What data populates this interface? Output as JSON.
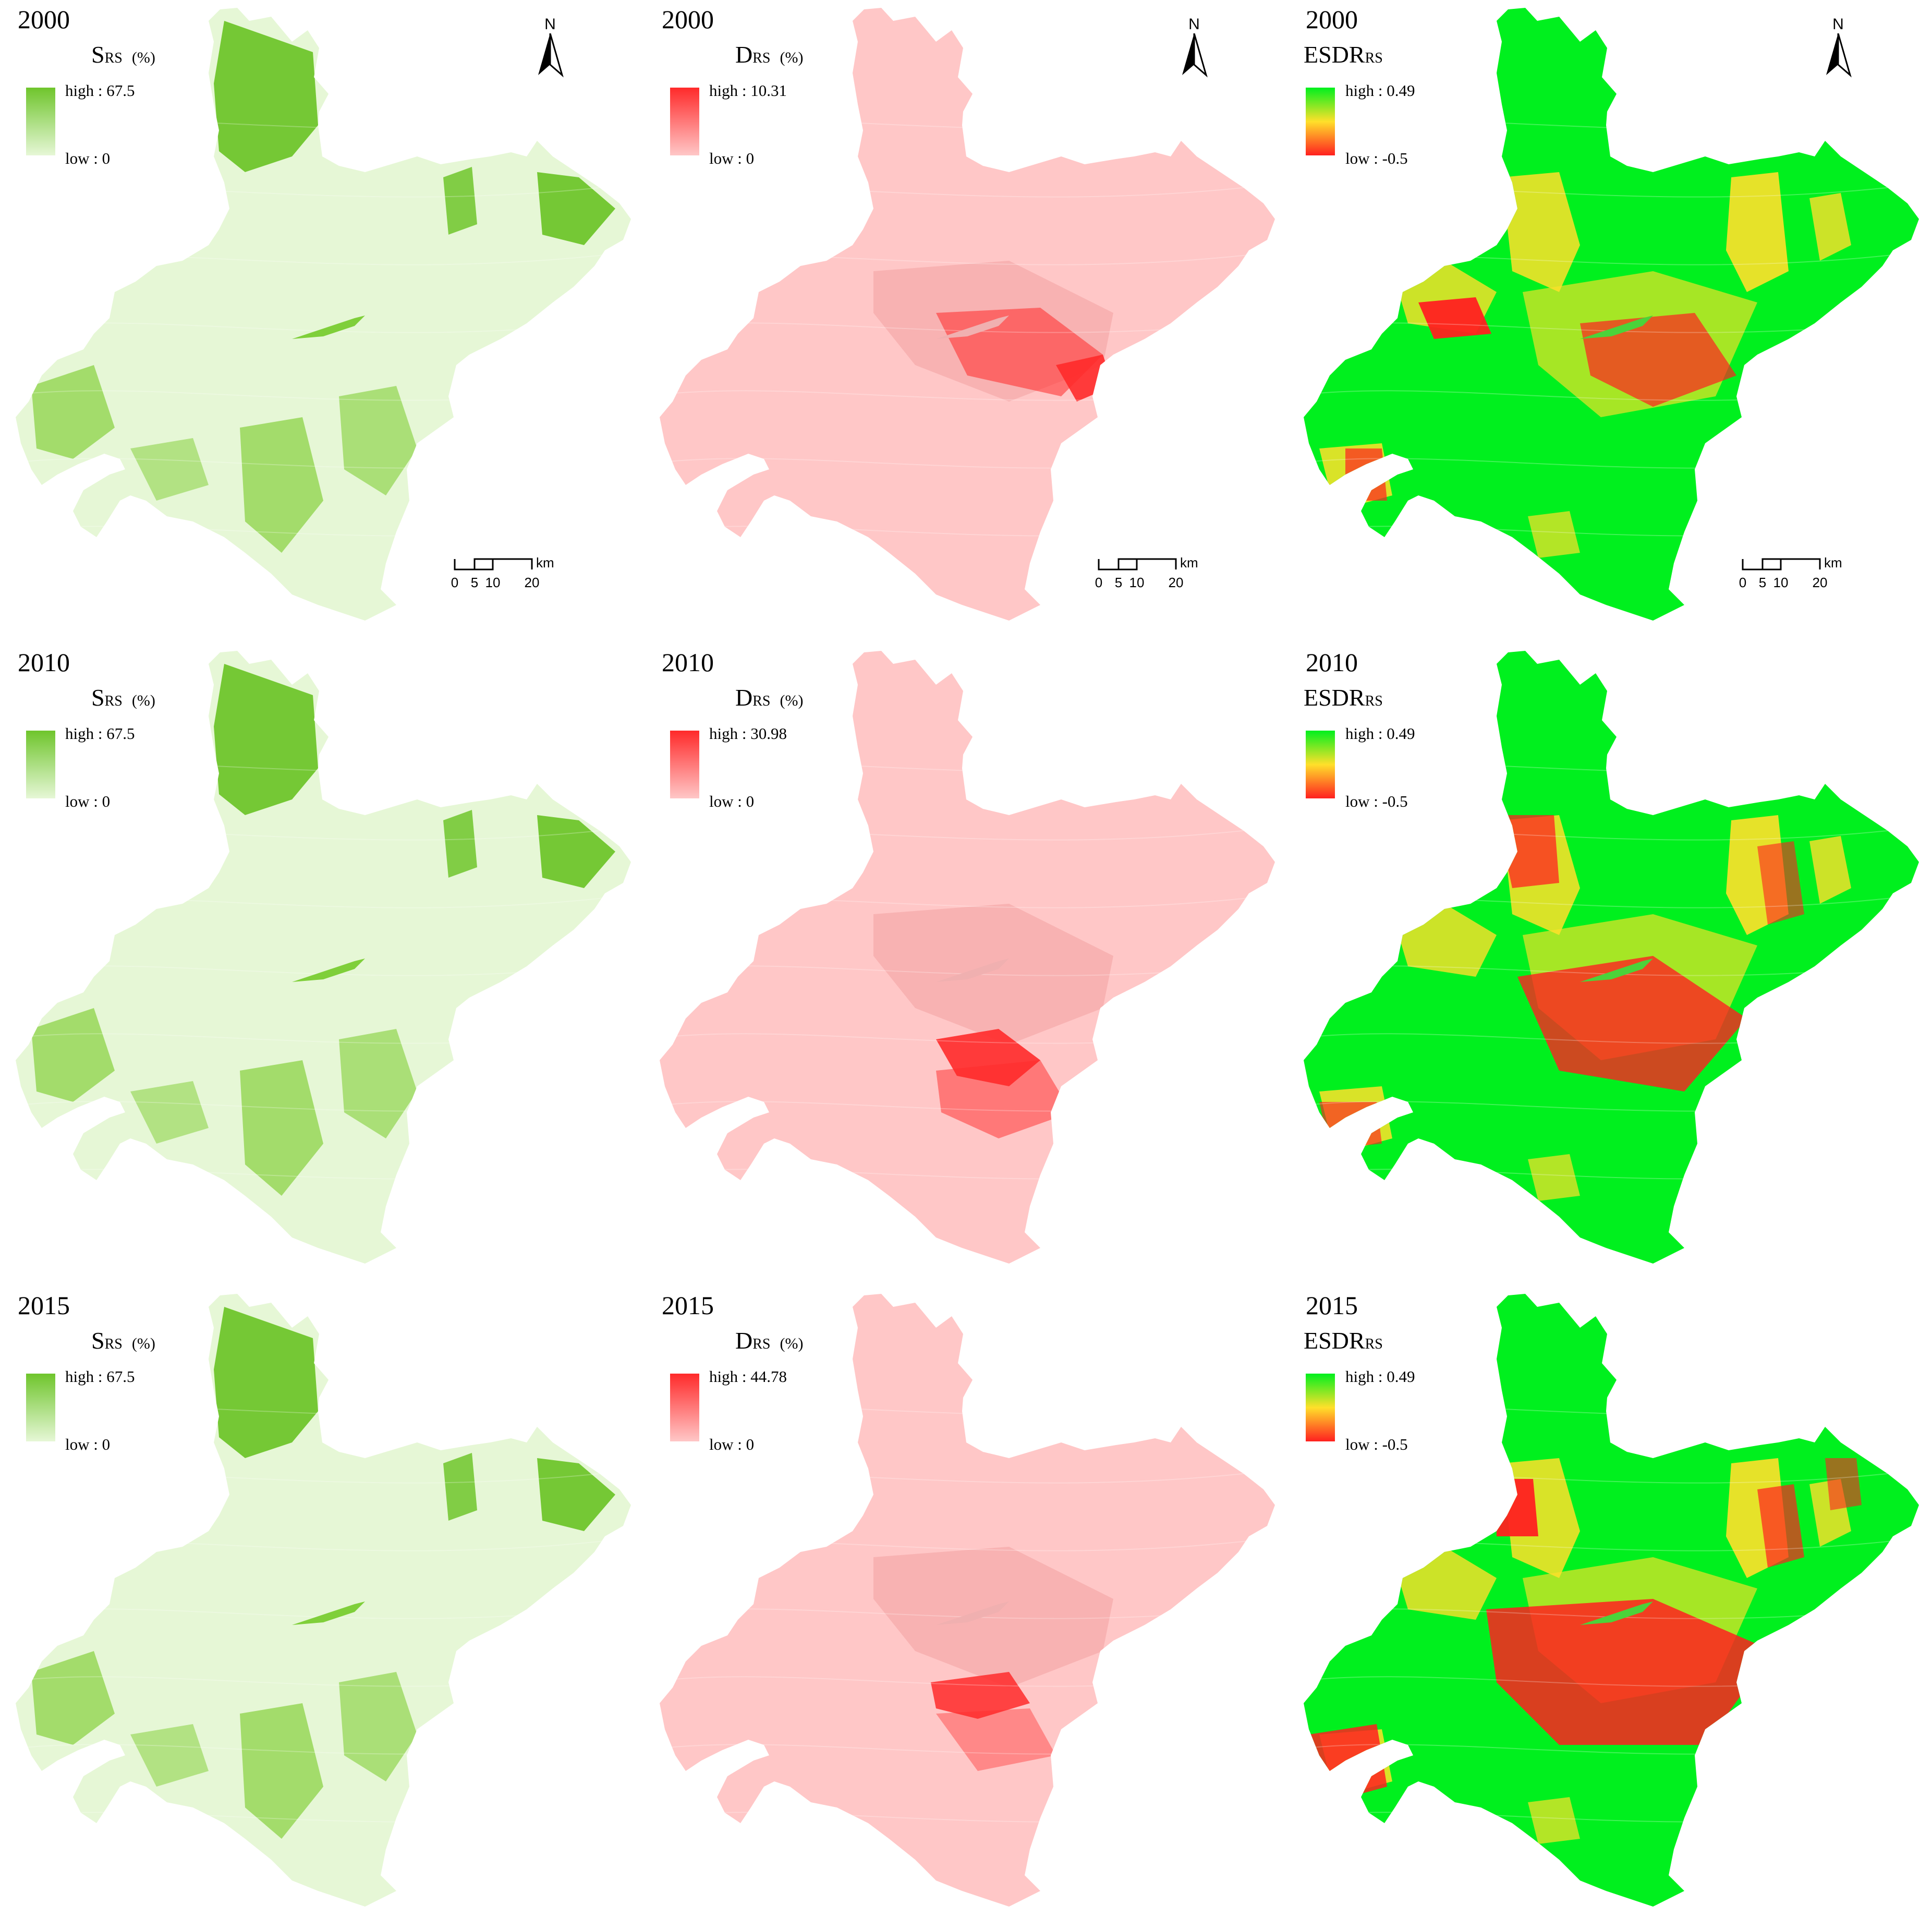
{
  "figure": {
    "columns": {
      "s": {
        "title_main": "S",
        "title_sub": "RS",
        "unit": "(%)",
        "colors": {
          "high": "#6fc52c",
          "low": "#e6f7d6",
          "shade": "#9bd85f"
        }
      },
      "d": {
        "title_main": "D",
        "title_sub": "RS",
        "unit": "(%)",
        "colors": {
          "high": "#ff2a2a",
          "low": "#ffc7c7",
          "shade": "#f2a0a0"
        }
      },
      "e": {
        "title_main": "ESDR",
        "title_sub": "RS",
        "unit": "",
        "colors": {
          "high": "#00f01e",
          "mid": "#ffe02a",
          "low": "#ff2020"
        }
      }
    },
    "rows": [
      {
        "year": "2000",
        "s": {
          "high": "high : 67.5",
          "low": "low : 0"
        },
        "d": {
          "high": "high : 10.31",
          "low": "low : 0"
        },
        "e": {
          "high": "high : 0.49",
          "low": "low : -0.5"
        }
      },
      {
        "year": "2010",
        "s": {
          "high": "high : 67.5",
          "low": "low : 0"
        },
        "d": {
          "high": "high : 30.98",
          "low": "low : 0"
        },
        "e": {
          "high": "high : 0.49",
          "low": "low : -0.5"
        }
      },
      {
        "year": "2015",
        "s": {
          "high": "high : 67.5",
          "low": "low : 0"
        },
        "d": {
          "high": "high : 44.78",
          "low": "low : 0"
        },
        "e": {
          "high": "high : 0.49",
          "low": "low : -0.5"
        }
      }
    ],
    "north_label": "N",
    "scale_bar": {
      "ticks": [
        "0",
        "5",
        "10",
        "20"
      ],
      "unit": "km"
    }
  }
}
